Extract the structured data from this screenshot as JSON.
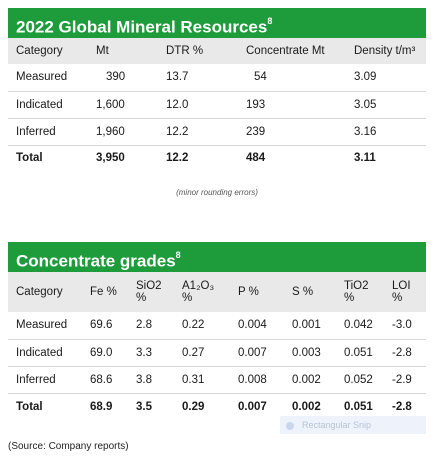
{
  "resources": {
    "title": "2022 Global Mineral Resources",
    "title_sup": "8",
    "headers": [
      "Category",
      "Mt",
      "DTR %",
      "Concentrate Mt",
      "Density t/m³"
    ],
    "rows": [
      [
        "Measured",
        "390",
        "13.7",
        "54",
        "3.09"
      ],
      [
        "Indicated",
        "1,600",
        "12.0",
        "193",
        "3.05"
      ],
      [
        "Inferred",
        "1,960",
        "12.2",
        "239",
        "3.16"
      ]
    ],
    "total": [
      "Total",
      "3,950",
      "12.2",
      "484",
      "3.11"
    ],
    "note": "(minor rounding errors)"
  },
  "grades": {
    "title": "Concentrate grades",
    "title_sup": "8",
    "headers": [
      {
        "line1": "Category",
        "line2": ""
      },
      {
        "line1": "Fe %",
        "line2": ""
      },
      {
        "line1": "SiO2",
        "line2": "%"
      },
      {
        "line1": "A1₂O₃",
        "line2": "%"
      },
      {
        "line1": "P %",
        "line2": ""
      },
      {
        "line1": "S %",
        "line2": ""
      },
      {
        "line1": "TiO2",
        "line2": "%"
      },
      {
        "line1": "LOI",
        "line2": "%"
      }
    ],
    "rows": [
      [
        "Measured",
        "69.6",
        "2.8",
        "0.22",
        "0.004",
        "0.001",
        "0.042",
        "-3.0"
      ],
      [
        "Indicated",
        "69.0",
        "3.3",
        "0.27",
        "0.007",
        "0.003",
        "0.051",
        "-2.8"
      ],
      [
        "Inferred",
        "68.6",
        "3.8",
        "0.31",
        "0.008",
        "0.002",
        "0.052",
        "-2.9"
      ]
    ],
    "total": [
      "Total",
      "68.9",
      "3.5",
      "0.29",
      "0.007",
      "0.002",
      "0.051",
      "-2.8"
    ]
  },
  "snip_label": "Rectangular Snip",
  "source": "(Source: Company reports)"
}
